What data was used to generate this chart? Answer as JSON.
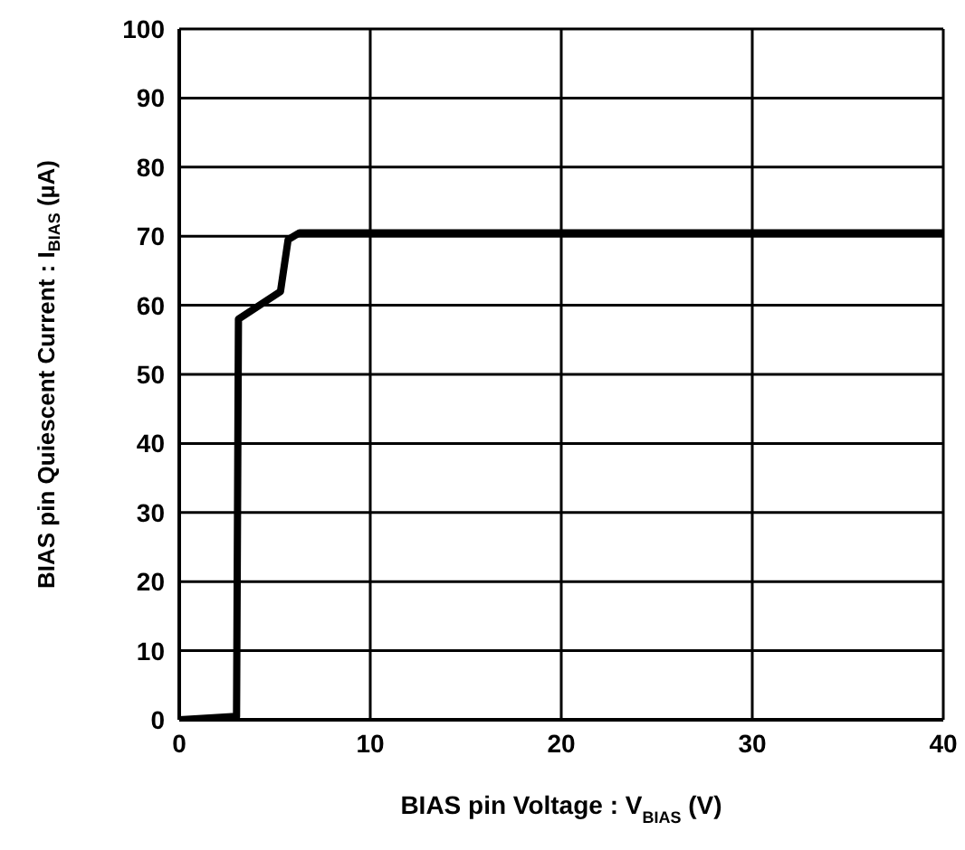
{
  "chart_data": {
    "type": "line",
    "xlabel": "BIAS pin Voltage : V$_{BIAS}$ (V)",
    "ylabel": "BIAS pin Quiescent Current : I$_{BIAS}$ (µA)",
    "x": [
      0,
      3,
      3.1,
      5.3,
      5.7,
      6.3,
      40
    ],
    "series": [
      {
        "color": "#000000",
        "values": [
          0,
          0.5,
          58,
          62,
          69.5,
          70.5,
          70.5
        ]
      }
    ],
    "xlim": [
      0,
      40
    ],
    "xticks": [
      0,
      10,
      20,
      30,
      40
    ],
    "ylim": [
      0,
      100
    ],
    "yticks": [
      0,
      10,
      20,
      30,
      40,
      50,
      60,
      70,
      80,
      90,
      100
    ],
    "grid": true,
    "legend": false,
    "marker": "none",
    "line_style": "solid"
  }
}
